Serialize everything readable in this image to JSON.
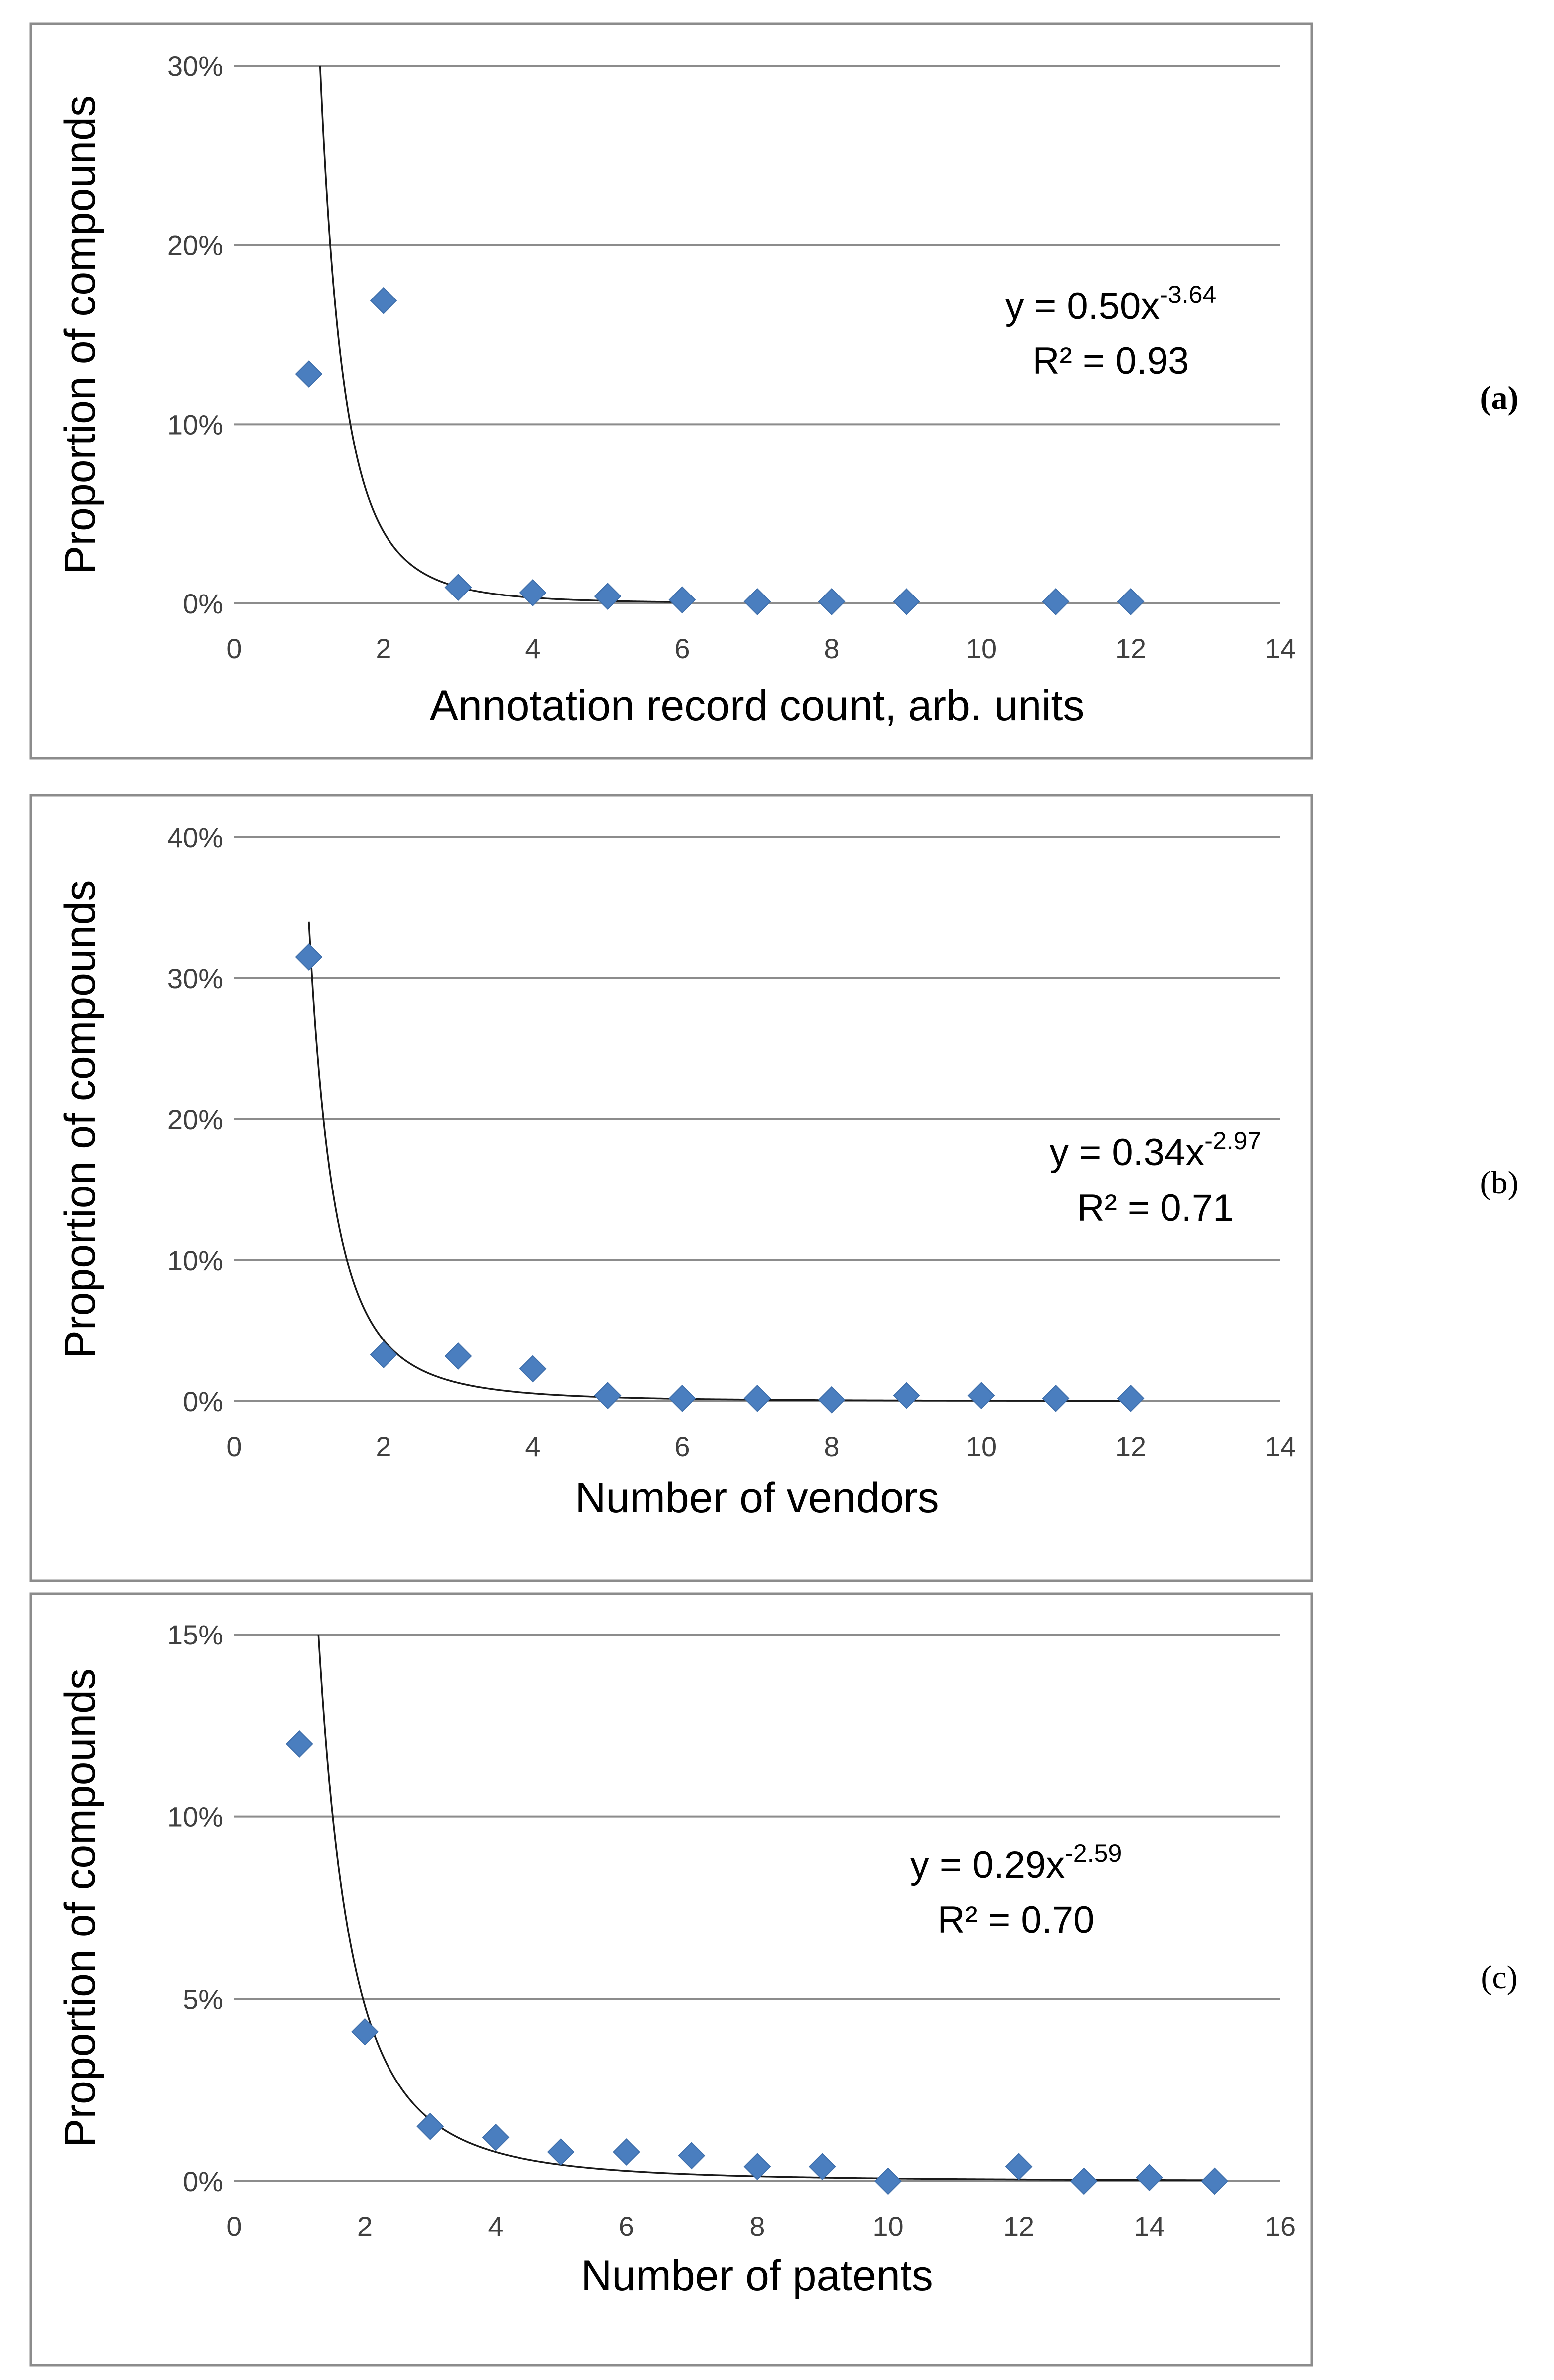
{
  "chart_data": [
    {
      "type": "scatter",
      "panel_label": "(a)",
      "xlabel": "Annotation record count, arb. units",
      "ylabel": "Proportion of compounds",
      "xlim": [
        0,
        14
      ],
      "ylim": [
        0,
        0.3
      ],
      "x_ticks": [
        0,
        2,
        4,
        6,
        8,
        10,
        12,
        14
      ],
      "x_tick_labels": [
        "0",
        "2",
        "4",
        "6",
        "8",
        "10",
        "12",
        "14"
      ],
      "y_ticks": [
        0,
        0.1,
        0.2,
        0.3
      ],
      "y_tick_labels": [
        "0%",
        "10%",
        "20%",
        "30%"
      ],
      "grid": true,
      "series": [
        {
          "name": "Proportion of compounds",
          "x": [
            1,
            2,
            3,
            4,
            5,
            6,
            7,
            8,
            9,
            11,
            12
          ],
          "y": [
            0.128,
            0.169,
            0.009,
            0.006,
            0.004,
            0.002,
            0.001,
            0.001,
            0.001,
            0.001,
            0.001
          ],
          "color": "#4a7ebf"
        }
      ],
      "trendline": {
        "type": "power",
        "a": 0.5,
        "b": -3.64,
        "x_range": [
          1,
          6
        ]
      },
      "equation": {
        "main": "y = 0.50x",
        "exponent": "-3.64",
        "r2": "R² = 0.93"
      }
    },
    {
      "type": "scatter",
      "panel_label": "(b)",
      "xlabel": "Number of vendors",
      "ylabel": "Proportion of compounds",
      "xlim": [
        0,
        14
      ],
      "ylim": [
        0,
        0.4
      ],
      "x_ticks": [
        0,
        2,
        4,
        6,
        8,
        10,
        12,
        14
      ],
      "x_tick_labels": [
        "0",
        "2",
        "4",
        "6",
        "8",
        "10",
        "12",
        "14"
      ],
      "y_ticks": [
        0,
        0.1,
        0.2,
        0.3,
        0.4
      ],
      "y_tick_labels": [
        "0%",
        "10%",
        "20%",
        "30%",
        "40%"
      ],
      "grid": true,
      "series": [
        {
          "name": "Proportion of compounds",
          "x": [
            1,
            2,
            3,
            4,
            5,
            6,
            7,
            8,
            9,
            10,
            11,
            12
          ],
          "y": [
            0.315,
            0.033,
            0.032,
            0.023,
            0.004,
            0.002,
            0.002,
            0.001,
            0.004,
            0.004,
            0.002,
            0.002
          ],
          "color": "#4a7ebf"
        }
      ],
      "trendline": {
        "type": "power",
        "a": 0.34,
        "b": -2.97,
        "x_range": [
          1,
          12
        ]
      },
      "equation": {
        "main": "y = 0.34x",
        "exponent": "-2.97",
        "r2": "R² = 0.71"
      }
    },
    {
      "type": "scatter",
      "panel_label": "(c)",
      "xlabel": "Number of patents",
      "ylabel": "Proportion of compounds",
      "xlim": [
        0,
        16
      ],
      "ylim": [
        0,
        0.15
      ],
      "x_ticks": [
        0,
        2,
        4,
        6,
        8,
        10,
        12,
        14,
        16
      ],
      "x_tick_labels": [
        "0",
        "2",
        "4",
        "6",
        "8",
        "10",
        "12",
        "14",
        "16"
      ],
      "y_ticks": [
        0,
        0.05,
        0.1,
        0.15
      ],
      "y_tick_labels": [
        "0%",
        "5%",
        "10%",
        "15%"
      ],
      "grid": true,
      "series": [
        {
          "name": "Proportion of compounds",
          "x": [
            1,
            2,
            3,
            4,
            5,
            6,
            7,
            8,
            9,
            10,
            12,
            13,
            14,
            15
          ],
          "y": [
            0.12,
            0.041,
            0.015,
            0.012,
            0.008,
            0.008,
            0.007,
            0.004,
            0.004,
            0.0,
            0.004,
            0.0,
            0.001,
            0.0
          ],
          "color": "#4a7ebf"
        }
      ],
      "trendline": {
        "type": "power",
        "a": 0.29,
        "b": -2.59,
        "x_range": [
          1,
          15
        ]
      },
      "equation": {
        "main": "y = 0.29x",
        "exponent": "-2.59",
        "r2": "R² = 0.70"
      }
    }
  ]
}
